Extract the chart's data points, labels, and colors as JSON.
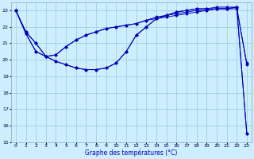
{
  "xlabel": "Graphe des températures (°C)",
  "xlim": [
    -0.5,
    23.5
  ],
  "ylim": [
    15,
    23.5
  ],
  "yticks": [
    15,
    16,
    17,
    18,
    19,
    20,
    21,
    22,
    23
  ],
  "xticks": [
    0,
    1,
    2,
    3,
    4,
    5,
    6,
    7,
    8,
    9,
    10,
    11,
    12,
    13,
    14,
    15,
    16,
    17,
    18,
    19,
    20,
    21,
    22,
    23
  ],
  "bg_color": "#cceeff",
  "grid_color": "#99cccc",
  "line_color": "#0000bb",
  "series": [
    {
      "x": [
        0,
        1,
        2,
        3,
        4,
        5,
        6,
        7,
        8,
        9,
        10,
        11,
        12,
        13,
        14,
        15,
        16,
        17,
        18,
        19,
        20,
        21,
        22,
        23
      ],
      "y": [
        23.0,
        21.7,
        21.0,
        20.2,
        20.3,
        20.8,
        21.2,
        21.5,
        21.7,
        21.9,
        22.0,
        22.1,
        22.2,
        22.4,
        22.6,
        22.7,
        22.8,
        22.9,
        23.0,
        23.0,
        23.1,
        23.1,
        23.2,
        19.7
      ]
    },
    {
      "x": [
        0,
        1,
        2,
        3,
        4,
        5,
        6,
        7,
        8,
        9,
        10,
        11,
        12,
        13,
        14,
        15,
        16,
        17,
        18,
        19,
        20,
        21,
        22,
        23
      ],
      "y": [
        23.0,
        21.7,
        21.0,
        20.2,
        20.3,
        20.8,
        21.2,
        21.5,
        21.7,
        21.9,
        22.0,
        22.1,
        22.2,
        22.4,
        22.5,
        22.6,
        22.7,
        22.8,
        22.9,
        23.0,
        23.1,
        23.1,
        23.2,
        15.5
      ]
    },
    {
      "x": [
        0,
        1,
        2,
        3,
        4,
        5,
        6,
        7,
        8,
        9,
        10,
        11,
        12,
        13,
        14,
        15,
        16,
        17,
        18,
        19,
        20,
        21,
        22,
        23
      ],
      "y": [
        23.0,
        21.6,
        20.5,
        20.2,
        19.9,
        19.7,
        19.5,
        19.4,
        19.4,
        19.5,
        19.8,
        20.5,
        21.5,
        22.0,
        22.5,
        22.7,
        22.9,
        23.0,
        23.1,
        23.1,
        23.1,
        23.1,
        23.1,
        19.8
      ]
    },
    {
      "x": [
        0,
        1,
        2,
        3,
        4,
        5,
        6,
        7,
        8,
        9,
        10,
        11,
        12,
        13,
        14,
        15,
        16,
        17,
        18,
        19,
        20,
        21,
        22,
        23
      ],
      "y": [
        23.0,
        21.6,
        20.5,
        20.2,
        19.9,
        19.7,
        19.5,
        19.4,
        19.4,
        19.5,
        19.8,
        20.5,
        21.5,
        22.0,
        22.5,
        22.7,
        22.9,
        23.0,
        23.1,
        23.1,
        23.2,
        23.2,
        23.2,
        15.5
      ]
    }
  ]
}
